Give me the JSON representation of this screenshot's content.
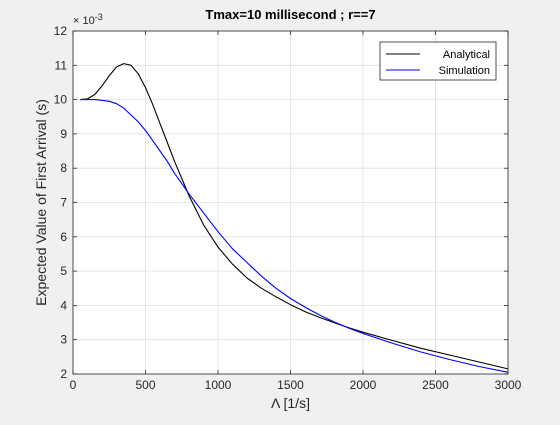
{
  "chart_data": {
    "type": "line",
    "title": "Tmax=10 millisecond ; r==7",
    "xlabel": "Λ [1/s]",
    "ylabel": "Expected Value of First Arrival (s)",
    "y_exponent_label": "× 10",
    "y_exponent_power": "-3",
    "xlim": [
      0,
      3000
    ],
    "ylim": [
      2,
      12
    ],
    "xticks": [
      0,
      500,
      1000,
      1500,
      2000,
      2500,
      3000
    ],
    "yticks": [
      2,
      3,
      4,
      5,
      6,
      7,
      8,
      9,
      10,
      11,
      12
    ],
    "grid": true,
    "legend_position": "top-right",
    "series": [
      {
        "name": "Analytical",
        "color": "#000000",
        "x": [
          50,
          100,
          150,
          200,
          250,
          300,
          350,
          400,
          450,
          500,
          550,
          600,
          650,
          700,
          750,
          800,
          900,
          1000,
          1100,
          1200,
          1300,
          1400,
          1500,
          1600,
          1700,
          1800,
          1900,
          2000,
          2200,
          2400,
          2600,
          2800,
          3000
        ],
        "values": [
          10.0,
          10.02,
          10.15,
          10.4,
          10.7,
          10.95,
          11.05,
          11.0,
          10.75,
          10.35,
          9.85,
          9.3,
          8.75,
          8.2,
          7.7,
          7.2,
          6.35,
          5.7,
          5.2,
          4.8,
          4.5,
          4.25,
          4.02,
          3.82,
          3.65,
          3.5,
          3.35,
          3.22,
          2.98,
          2.75,
          2.55,
          2.35,
          2.15
        ]
      },
      {
        "name": "Simulation",
        "color": "#0000ff",
        "x": [
          50,
          100,
          150,
          200,
          250,
          300,
          350,
          400,
          450,
          500,
          550,
          600,
          650,
          700,
          750,
          800,
          900,
          1000,
          1100,
          1200,
          1300,
          1400,
          1500,
          1600,
          1700,
          1800,
          1900,
          2000,
          2200,
          2400,
          2600,
          2800,
          3000
        ],
        "values": [
          10.0,
          10.0,
          10.0,
          9.98,
          9.95,
          9.88,
          9.75,
          9.55,
          9.35,
          9.1,
          8.8,
          8.5,
          8.2,
          7.85,
          7.55,
          7.25,
          6.7,
          6.15,
          5.65,
          5.25,
          4.85,
          4.5,
          4.2,
          3.95,
          3.72,
          3.52,
          3.34,
          3.18,
          2.9,
          2.64,
          2.42,
          2.22,
          2.05
        ]
      }
    ]
  }
}
